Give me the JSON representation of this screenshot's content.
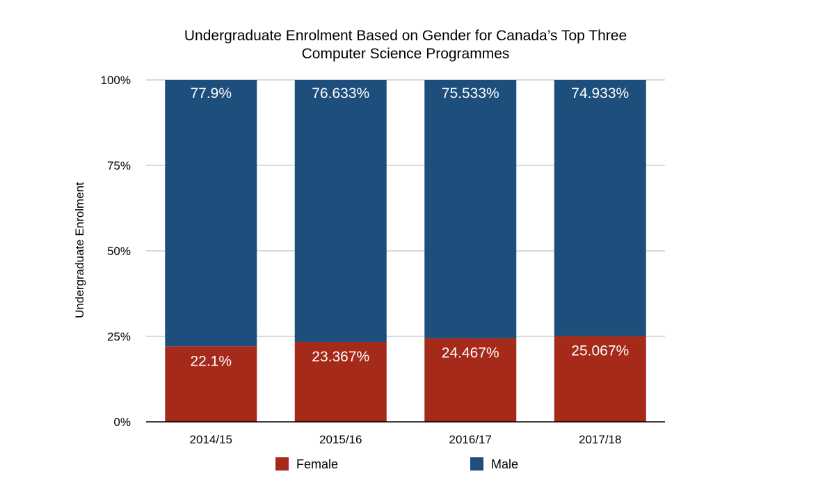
{
  "chart_data": {
    "type": "bar",
    "stacked": true,
    "title": "Undergraduate Enrolment Based on Gender for Canada’s Top Three Computer Science Programmes",
    "title_lines": [
      "Undergraduate Enrolment Based on Gender for Canada’s Top Three",
      "Computer Science Programmes"
    ],
    "xlabel": "",
    "ylabel": "Undergraduate Enrolment",
    "ylim": [
      0,
      100
    ],
    "yticks": [
      "0%",
      "25%",
      "50%",
      "75%",
      "100%"
    ],
    "ytick_values": [
      0,
      25,
      50,
      75,
      100
    ],
    "grid": true,
    "legend_position": "bottom",
    "categories": [
      "2014/15",
      "2015/16",
      "2016/17",
      "2017/18"
    ],
    "series": [
      {
        "name": "Female",
        "color": "#a52a1a",
        "values": [
          22.1,
          23.367,
          24.467,
          25.067
        ],
        "labels": [
          "22.1%",
          "23.367%",
          "24.467%",
          "25.067%"
        ]
      },
      {
        "name": "Male",
        "color": "#1d4e7c",
        "values": [
          77.9,
          76.633,
          75.533,
          74.933
        ],
        "labels": [
          "77.9%",
          "76.633%",
          "75.533%",
          "74.933%"
        ]
      }
    ]
  }
}
